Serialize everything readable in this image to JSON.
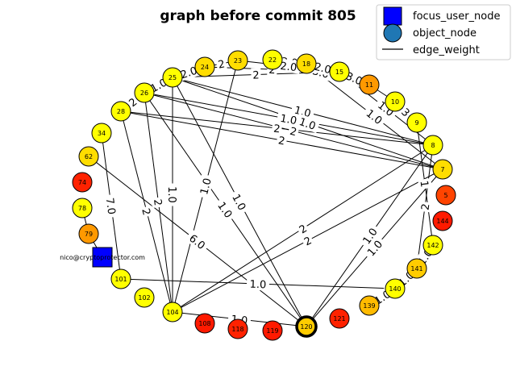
{
  "title": "graph before commit 805",
  "legend": {
    "placement": "top-right",
    "items": [
      {
        "label": "focus_user_node",
        "kind": "square",
        "color": "#0000ff"
      },
      {
        "label": "object_node",
        "kind": "circle",
        "color": "#1f77b4"
      },
      {
        "label": "edge_weight",
        "kind": "line",
        "color": "#000000"
      }
    ]
  },
  "focus_node": {
    "label": "nico@cryptoprotector.com",
    "color": "#0000ff"
  },
  "nodes": [
    {
      "id": "22",
      "color": "#ffff00"
    },
    {
      "id": "18",
      "color": "#ffdd00"
    },
    {
      "id": "15",
      "color": "#ffff00"
    },
    {
      "id": "11",
      "color": "#ff9900"
    },
    {
      "id": "10",
      "color": "#ffff00"
    },
    {
      "id": "9",
      "color": "#ffff00"
    },
    {
      "id": "8",
      "color": "#ffff00"
    },
    {
      "id": "7",
      "color": "#ffdd00"
    },
    {
      "id": "5",
      "color": "#ff4400"
    },
    {
      "id": "144",
      "color": "#ff1a00"
    },
    {
      "id": "142",
      "color": "#ffff00"
    },
    {
      "id": "141",
      "color": "#ffcc00"
    },
    {
      "id": "140",
      "color": "#ffff00"
    },
    {
      "id": "139",
      "color": "#ffbb00"
    },
    {
      "id": "121",
      "color": "#ff2200"
    },
    {
      "id": "120",
      "color": "#ffcc00"
    },
    {
      "id": "119",
      "color": "#ff1a00"
    },
    {
      "id": "118",
      "color": "#ff2200"
    },
    {
      "id": "108",
      "color": "#ff1a00"
    },
    {
      "id": "104",
      "color": "#ffff00"
    },
    {
      "id": "102",
      "color": "#ffff00"
    },
    {
      "id": "101",
      "color": "#ffff00"
    },
    {
      "id": "79",
      "color": "#ff9900"
    },
    {
      "id": "78",
      "color": "#ffff00"
    },
    {
      "id": "74",
      "color": "#ff2200"
    },
    {
      "id": "62",
      "color": "#ffdd00"
    },
    {
      "id": "34",
      "color": "#ffff00"
    },
    {
      "id": "28",
      "color": "#ffff00"
    },
    {
      "id": "26",
      "color": "#ffff00"
    },
    {
      "id": "25",
      "color": "#ffff00"
    },
    {
      "id": "24",
      "color": "#ffdd00"
    },
    {
      "id": "23",
      "color": "#ffdd00"
    }
  ],
  "edges": [
    {
      "from": "22",
      "to": "18",
      "label": "3.0"
    },
    {
      "from": "23",
      "to": "15",
      "label": "2.0"
    },
    {
      "from": "24",
      "to": "15",
      "label": "2"
    },
    {
      "from": "25",
      "to": "15",
      "label": "2"
    },
    {
      "from": "22",
      "to": "11",
      "label": "3.0"
    },
    {
      "from": "10",
      "to": "9",
      "label": "3"
    },
    {
      "from": "25",
      "to": "8",
      "label": "1.0"
    },
    {
      "from": "25",
      "to": "7",
      "label": "1.0"
    },
    {
      "from": "26",
      "to": "8",
      "label": "1.0"
    },
    {
      "from": "26",
      "to": "7",
      "label": "2"
    },
    {
      "from": "28",
      "to": "8",
      "label": "2"
    },
    {
      "from": "28",
      "to": "7",
      "label": "2"
    },
    {
      "from": "15",
      "to": "8",
      "label": "1.0"
    },
    {
      "from": "18",
      "to": "7",
      "label": "1.0"
    },
    {
      "from": "9",
      "to": "142",
      "label": "1"
    },
    {
      "from": "8",
      "to": "141",
      "label": "2"
    },
    {
      "from": "7",
      "to": "104",
      "label": "2"
    },
    {
      "from": "8",
      "to": "104",
      "label": "2"
    },
    {
      "from": "7",
      "to": "120",
      "label": "1.0"
    },
    {
      "from": "8",
      "to": "120",
      "label": "1.0"
    },
    {
      "from": "139",
      "to": "140",
      "label": "1.0"
    },
    {
      "from": "101",
      "to": "140",
      "label": "1.0"
    },
    {
      "from": "104",
      "to": "120",
      "label": "1.0"
    },
    {
      "from": "23",
      "to": "104",
      "label": "1.0"
    },
    {
      "from": "25",
      "to": "104",
      "label": "1.0"
    },
    {
      "from": "26",
      "to": "104",
      "label": "2"
    },
    {
      "from": "28",
      "to": "104",
      "label": "2"
    },
    {
      "from": "25",
      "to": "120",
      "label": "1.0"
    },
    {
      "from": "26",
      "to": "120",
      "label": "1.0"
    },
    {
      "from": "62",
      "to": "120",
      "label": "6.0"
    },
    {
      "from": "34",
      "to": "101",
      "label": "7.0"
    },
    {
      "from": "28",
      "to": "26",
      "label": "2"
    },
    {
      "from": "26",
      "to": "25",
      "label": "1.0"
    },
    {
      "from": "25",
      "to": "24",
      "label": "2.0"
    },
    {
      "from": "24",
      "to": "23",
      "label": "2"
    },
    {
      "from": "18",
      "to": "15",
      "label": "2.0"
    },
    {
      "from": "15",
      "to": "11",
      "label": "3.0"
    },
    {
      "from": "11",
      "to": "10",
      "label": ""
    },
    {
      "from": "79",
      "to": "nico@cryptoprotector.com",
      "label": ""
    },
    {
      "from": "78",
      "to": "79",
      "label": ""
    },
    {
      "from": "142",
      "to": "141",
      "label": "1.0"
    },
    {
      "from": "140",
      "to": "141",
      "label": "1.0"
    }
  ]
}
